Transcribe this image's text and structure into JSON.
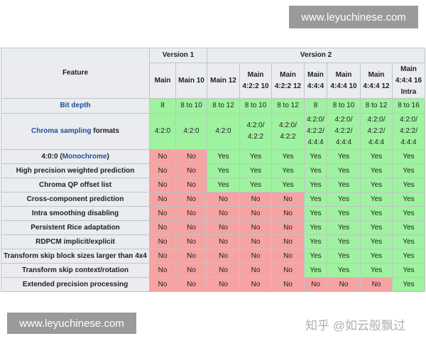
{
  "watermarks": {
    "top": "www.leyuchinese.com",
    "bottom": "www.leyuchinese.com",
    "overlay": "知乎 @如云般飘过"
  },
  "colors": {
    "supported": "#9ff29f",
    "unsupported": "#f5a3a3",
    "header": "#eaecf0",
    "link": "#1f4e9c"
  },
  "table": {
    "feature_header": "Feature",
    "versions": [
      "Version 1",
      "Version 2"
    ],
    "profiles": [
      [
        "Main"
      ],
      [
        "Main 10"
      ],
      [
        "Main 12"
      ],
      [
        "Main",
        "4:2:2 10"
      ],
      [
        "Main",
        "4:2:2 12"
      ],
      [
        "Main",
        "4:4:4"
      ],
      [
        "Main",
        "4:4:4 10"
      ],
      [
        "Main",
        "4:4:4 12"
      ],
      [
        "Main",
        "4:4:4 16",
        "Intra"
      ]
    ],
    "bit_depth": {
      "label": "Bit depth",
      "values": [
        "8",
        "8 to 10",
        "8 to 12",
        "8 to 10",
        "8 to 12",
        "8",
        "8 to 10",
        "8 to 12",
        "8 to 16"
      ]
    },
    "chroma": {
      "link": "Chroma sampling",
      "suffix": " formats",
      "values": [
        [
          "4:2:0"
        ],
        [
          "4:2:0"
        ],
        [
          "4:2:0"
        ],
        [
          "4:2:0/",
          "4:2:2"
        ],
        [
          "4:2:0/",
          "4:2:2"
        ],
        [
          "4:2:0/",
          "4:2:2/",
          "4:4:4"
        ],
        [
          "4:2:0/",
          "4:2:2/",
          "4:4:4"
        ],
        [
          "4:2:0/",
          "4:2:2/",
          "4:4:4"
        ],
        [
          "4:2:0/",
          "4:2:2/",
          "4:4:4"
        ]
      ]
    },
    "mono": {
      "prefix": "4:0:0 (",
      "link": "Monochrome",
      "suffix": ")",
      "values": [
        "No",
        "No",
        "Yes",
        "Yes",
        "Yes",
        "Yes",
        "Yes",
        "Yes",
        "Yes"
      ]
    },
    "rows": [
      {
        "label": "High precision weighted prediction",
        "values": [
          "No",
          "No",
          "Yes",
          "Yes",
          "Yes",
          "Yes",
          "Yes",
          "Yes",
          "Yes"
        ]
      },
      {
        "label": "Chroma QP offset list",
        "values": [
          "No",
          "No",
          "Yes",
          "Yes",
          "Yes",
          "Yes",
          "Yes",
          "Yes",
          "Yes"
        ]
      },
      {
        "label": "Cross-component prediction",
        "values": [
          "No",
          "No",
          "No",
          "No",
          "No",
          "Yes",
          "Yes",
          "Yes",
          "Yes"
        ]
      },
      {
        "label": "Intra smoothing disabling",
        "values": [
          "No",
          "No",
          "No",
          "No",
          "No",
          "Yes",
          "Yes",
          "Yes",
          "Yes"
        ]
      },
      {
        "label": "Persistent Rice adaptation",
        "values": [
          "No",
          "No",
          "No",
          "No",
          "No",
          "Yes",
          "Yes",
          "Yes",
          "Yes"
        ]
      },
      {
        "label": "RDPCM implicit/explicit",
        "values": [
          "No",
          "No",
          "No",
          "No",
          "No",
          "Yes",
          "Yes",
          "Yes",
          "Yes"
        ]
      },
      {
        "label": "Transform skip block sizes larger than 4x4",
        "values": [
          "No",
          "No",
          "No",
          "No",
          "No",
          "Yes",
          "Yes",
          "Yes",
          "Yes"
        ]
      },
      {
        "label": "Transform skip context/rotation",
        "values": [
          "No",
          "No",
          "No",
          "No",
          "No",
          "Yes",
          "Yes",
          "Yes",
          "Yes"
        ]
      },
      {
        "label": "Extended precision processing",
        "values": [
          "No",
          "No",
          "No",
          "No",
          "No",
          "No",
          "No",
          "No",
          "Yes"
        ]
      }
    ]
  }
}
